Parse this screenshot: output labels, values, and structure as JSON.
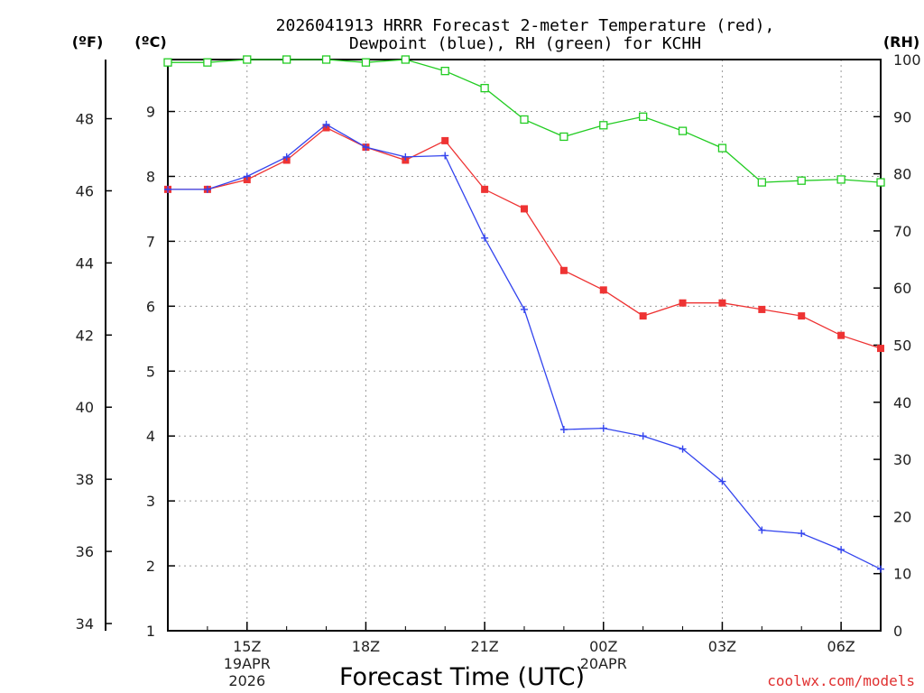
{
  "chart_data": {
    "type": "line",
    "title_line1": "2026041913 HRRR Forecast 2-meter Temperature (red),",
    "title_line2": "Dewpoint (blue), RH (green) for KCHH",
    "xlabel": "Forecast Time (UTC)",
    "credit": "coolwx.com/models",
    "unit_f": "(ºF)",
    "unit_c": "(ºC)",
    "unit_rh": "(RH)",
    "x_hours": [
      13,
      14,
      15,
      16,
      17,
      18,
      19,
      20,
      21,
      22,
      23,
      24,
      25,
      26,
      27,
      28,
      29,
      30,
      31
    ],
    "xlim": [
      13,
      31
    ],
    "x_ticks": [
      {
        "hour": 15,
        "label": "15Z",
        "date": "19APR",
        "year": "2026"
      },
      {
        "hour": 18,
        "label": "18Z"
      },
      {
        "hour": 21,
        "label": "21Z"
      },
      {
        "hour": 24,
        "label": "00Z",
        "date": "20APR"
      },
      {
        "hour": 27,
        "label": "03Z"
      },
      {
        "hour": 30,
        "label": "06Z"
      }
    ],
    "y_left_c": {
      "range": [
        1,
        9.8
      ],
      "ticks": [
        "1",
        "2",
        "3",
        "4",
        "5",
        "6",
        "7",
        "8",
        "9"
      ]
    },
    "y_left_f": {
      "ticks": [
        "34",
        "36",
        "38",
        "40",
        "42",
        "44",
        "46",
        "48"
      ]
    },
    "y_right_rh": {
      "range": [
        0,
        100
      ],
      "ticks": [
        "0",
        "10",
        "20",
        "30",
        "40",
        "50",
        "60",
        "70",
        "80",
        "90",
        "100"
      ]
    },
    "series": [
      {
        "name": "Temperature",
        "axis": "C",
        "color": "#ee3333",
        "marker": "filled-square",
        "values": [
          7.8,
          7.8,
          7.95,
          8.25,
          8.75,
          8.45,
          8.25,
          8.55,
          7.8,
          7.5,
          6.55,
          6.25,
          5.85,
          6.05,
          6.05,
          5.95,
          5.85,
          5.55,
          5.35
        ]
      },
      {
        "name": "Dewpoint",
        "axis": "C",
        "color": "#3344ee",
        "marker": "plus",
        "values": [
          7.8,
          7.8,
          8.0,
          8.3,
          8.8,
          8.45,
          8.3,
          8.32,
          7.05,
          5.95,
          4.1,
          4.12,
          4.0,
          3.8,
          3.3,
          2.55,
          2.5,
          2.25,
          1.95
        ]
      },
      {
        "name": "RH",
        "axis": "RH",
        "color": "#22cc22",
        "marker": "open-square",
        "values": [
          99.5,
          99.5,
          100,
          100,
          100,
          99.5,
          100,
          98,
          95,
          89.5,
          86.5,
          88.5,
          90,
          87.5,
          84.5,
          78.5,
          78.8,
          79,
          78.5
        ]
      }
    ]
  }
}
